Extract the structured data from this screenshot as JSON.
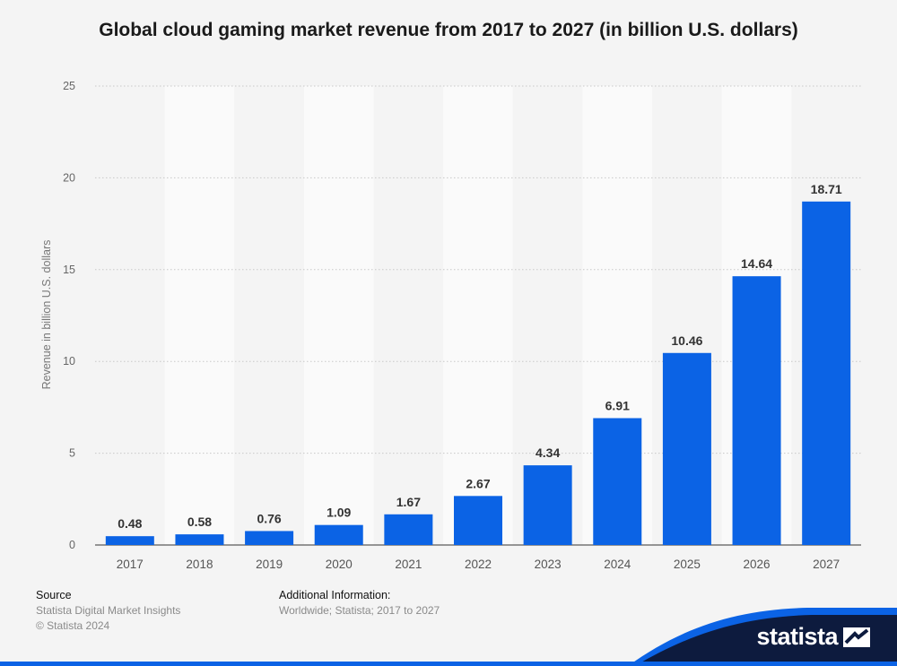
{
  "chart_data": {
    "type": "bar",
    "title": "Global cloud gaming market revenue from 2017 to 2027 (in billion U.S. dollars)",
    "xlabel": "",
    "ylabel": "Revenue in billion U.S. dollars",
    "ylim": [
      0,
      25
    ],
    "yticks": [
      0,
      5,
      10,
      15,
      20,
      25
    ],
    "categories": [
      "2017",
      "2018",
      "2019",
      "2020",
      "2021",
      "2022",
      "2023",
      "2024",
      "2025",
      "2026",
      "2027"
    ],
    "values": [
      0.48,
      0.58,
      0.76,
      1.09,
      1.67,
      2.67,
      4.34,
      6.91,
      10.46,
      14.64,
      18.71
    ],
    "value_labels": [
      "0.48",
      "0.58",
      "0.76",
      "1.09",
      "1.67",
      "2.67",
      "4.34",
      "6.91",
      "10.46",
      "14.64",
      "18.71"
    ],
    "grid": true,
    "bar_color": "#0b63e5"
  },
  "footer": {
    "source_heading": "Source",
    "source_lines": [
      "Statista Digital Market Insights",
      "© Statista 2024"
    ],
    "additional_heading": "Additional Information:",
    "additional_text": "Worldwide; Statista; 2017 to 2027"
  },
  "brand": {
    "name": "statista",
    "accent": "#0b63e5",
    "dark": "#0d1b3e"
  }
}
